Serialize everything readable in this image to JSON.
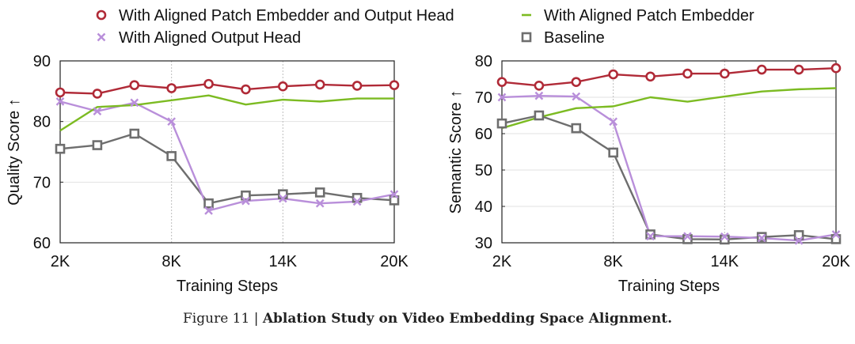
{
  "legend": [
    {
      "label": "With Aligned Patch Embedder and Output Head",
      "color": "#b02a37",
      "marker": "circle-open"
    },
    {
      "label": "With Aligned Patch Embedder",
      "color": "#7cbb22",
      "marker": "none"
    },
    {
      "label": "With Aligned Output Head",
      "color": "#b98fda",
      "marker": "x"
    },
    {
      "label": "Baseline",
      "color": "#6e6e6e",
      "marker": "square-open"
    }
  ],
  "caption": {
    "prefix": "Figure 11 | ",
    "title": "Ablation Study on Video Embedding Space Alignment."
  },
  "chart_data": [
    {
      "type": "line",
      "xlabel": "Training Steps",
      "ylabel": "Quality Score ↑",
      "x": [
        2000,
        4000,
        6000,
        8000,
        10000,
        12000,
        14000,
        16000,
        18000,
        20000
      ],
      "xticks": [
        {
          "value": 2000,
          "label": "2K"
        },
        {
          "value": 8000,
          "label": "8K"
        },
        {
          "value": 14000,
          "label": "14K"
        },
        {
          "value": 20000,
          "label": "20K"
        }
      ],
      "xlim": [
        2000,
        20000
      ],
      "yticks": [
        60,
        70,
        80,
        90
      ],
      "ylim": [
        60,
        90
      ],
      "grid": true,
      "series": [
        {
          "name": "With Aligned Patch Embedder and Output Head",
          "values": [
            84.8,
            84.6,
            86.0,
            85.5,
            86.2,
            85.3,
            85.8,
            86.1,
            85.9,
            86.0
          ]
        },
        {
          "name": "With Aligned Patch Embedder",
          "values": [
            78.5,
            82.4,
            82.7,
            83.5,
            84.3,
            82.8,
            83.6,
            83.3,
            83.8,
            83.8
          ]
        },
        {
          "name": "With Aligned Output Head",
          "values": [
            83.3,
            81.7,
            83.1,
            80.0,
            65.3,
            66.9,
            67.3,
            66.5,
            66.8,
            68.0
          ]
        },
        {
          "name": "Baseline",
          "values": [
            75.5,
            76.1,
            78.0,
            74.3,
            66.5,
            67.8,
            68.0,
            68.3,
            67.4,
            67.0
          ]
        }
      ]
    },
    {
      "type": "line",
      "xlabel": "Training Steps",
      "ylabel": "Semantic Score ↑",
      "x": [
        2000,
        4000,
        6000,
        8000,
        10000,
        12000,
        14000,
        16000,
        18000,
        20000
      ],
      "xticks": [
        {
          "value": 2000,
          "label": "2K"
        },
        {
          "value": 8000,
          "label": "8K"
        },
        {
          "value": 14000,
          "label": "14K"
        },
        {
          "value": 20000,
          "label": "20K"
        }
      ],
      "xlim": [
        2000,
        20000
      ],
      "yticks": [
        30,
        40,
        50,
        60,
        70,
        80
      ],
      "ylim": [
        30,
        80
      ],
      "grid": true,
      "series": [
        {
          "name": "With Aligned Patch Embedder and Output Head",
          "values": [
            74.2,
            73.2,
            74.2,
            76.3,
            75.7,
            76.5,
            76.5,
            77.6,
            77.6,
            78.0
          ]
        },
        {
          "name": "With Aligned Patch Embedder",
          "values": [
            61.5,
            64.5,
            67.0,
            67.5,
            70.0,
            68.8,
            70.2,
            71.6,
            72.2,
            72.5
          ]
        },
        {
          "name": "With Aligned Output Head",
          "values": [
            70.0,
            70.4,
            70.2,
            63.3,
            31.8,
            31.8,
            31.7,
            31.3,
            30.6,
            32.3
          ]
        },
        {
          "name": "Baseline",
          "values": [
            62.8,
            65.0,
            61.5,
            54.8,
            32.3,
            31.0,
            30.9,
            31.6,
            32.1,
            31.0
          ]
        }
      ]
    }
  ]
}
